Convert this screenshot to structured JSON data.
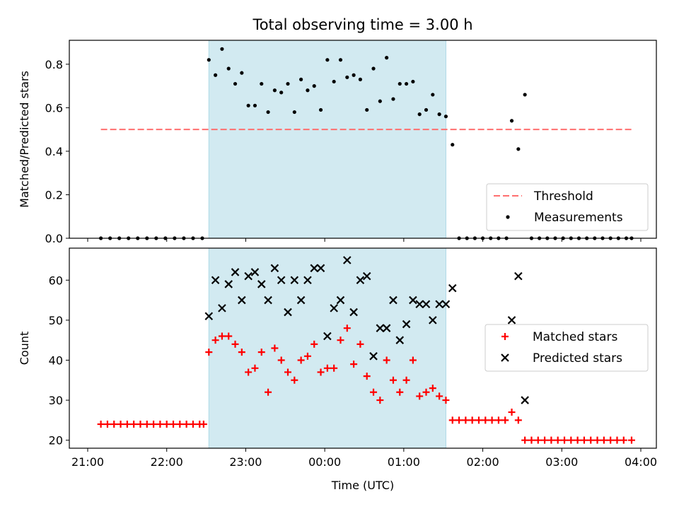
{
  "title": "Total observing time = 3.00 h",
  "colors": {
    "shade": "#add8e6",
    "threshold": "#ff6f6f",
    "measure": "#000000",
    "matched": "#ff0000",
    "predicted": "#000000"
  },
  "chart_data": [
    {
      "type": "scatter",
      "ylabel": "Matched/Predicted stars",
      "ylim": [
        0,
        0.91
      ],
      "yticks": [
        0.0,
        0.2,
        0.4,
        0.6,
        0.8
      ],
      "ytick_labels": [
        "0.0",
        "0.2",
        "0.4",
        "0.6",
        "0.8"
      ],
      "xlim": [
        "21:00",
        "04:00"
      ],
      "shaded_span": [
        "22:32",
        "01:32"
      ],
      "threshold": {
        "name": "Threshold",
        "value": 0.5,
        "x_range": [
          "21:10",
          "03:53"
        ]
      },
      "legend": {
        "position": "lower right",
        "entries": [
          "Threshold",
          "Measurements"
        ]
      },
      "series": [
        {
          "name": "Measurements",
          "marker": "dot",
          "points": [
            [
              "21:10",
              0
            ],
            [
              "21:17",
              0
            ],
            [
              "21:24",
              0
            ],
            [
              "21:31",
              0
            ],
            [
              "21:38",
              0
            ],
            [
              "21:45",
              0
            ],
            [
              "21:52",
              0
            ],
            [
              "21:59",
              0
            ],
            [
              "22:06",
              0
            ],
            [
              "22:13",
              0
            ],
            [
              "22:20",
              0
            ],
            [
              "22:27",
              0
            ],
            [
              "22:32",
              0.82
            ],
            [
              "22:37",
              0.75
            ],
            [
              "22:42",
              0.87
            ],
            [
              "22:47",
              0.78
            ],
            [
              "22:52",
              0.71
            ],
            [
              "22:57",
              0.76
            ],
            [
              "23:02",
              0.61
            ],
            [
              "23:07",
              0.61
            ],
            [
              "23:12",
              0.71
            ],
            [
              "23:17",
              0.58
            ],
            [
              "23:22",
              0.68
            ],
            [
              "23:27",
              0.67
            ],
            [
              "23:32",
              0.71
            ],
            [
              "23:37",
              0.58
            ],
            [
              "23:42",
              0.73
            ],
            [
              "23:47",
              0.68
            ],
            [
              "23:52",
              0.7
            ],
            [
              "23:57",
              0.59
            ],
            [
              "00:02",
              0.82
            ],
            [
              "00:07",
              0.72
            ],
            [
              "00:12",
              0.82
            ],
            [
              "00:17",
              0.74
            ],
            [
              "00:22",
              0.75
            ],
            [
              "00:27",
              0.73
            ],
            [
              "00:32",
              0.59
            ],
            [
              "00:37",
              0.78
            ],
            [
              "00:42",
              0.63
            ],
            [
              "00:47",
              0.83
            ],
            [
              "00:52",
              0.64
            ],
            [
              "00:57",
              0.71
            ],
            [
              "01:02",
              0.71
            ],
            [
              "01:07",
              0.72
            ],
            [
              "01:12",
              0.57
            ],
            [
              "01:17",
              0.59
            ],
            [
              "01:22",
              0.66
            ],
            [
              "01:27",
              0.57
            ],
            [
              "01:32",
              0.56
            ],
            [
              "01:37",
              0.43
            ],
            [
              "01:42",
              0
            ],
            [
              "01:48",
              0
            ],
            [
              "01:54",
              0
            ],
            [
              "02:00",
              0
            ],
            [
              "02:06",
              0
            ],
            [
              "02:12",
              0
            ],
            [
              "02:18",
              0
            ],
            [
              "02:22",
              0.54
            ],
            [
              "02:27",
              0.41
            ],
            [
              "02:32",
              0.66
            ],
            [
              "02:37",
              0
            ],
            [
              "02:43",
              0
            ],
            [
              "02:49",
              0
            ],
            [
              "02:55",
              0
            ],
            [
              "03:01",
              0
            ],
            [
              "03:07",
              0
            ],
            [
              "03:13",
              0
            ],
            [
              "03:19",
              0
            ],
            [
              "03:25",
              0
            ],
            [
              "03:31",
              0
            ],
            [
              "03:37",
              0
            ],
            [
              "03:43",
              0
            ],
            [
              "03:49",
              0
            ],
            [
              "03:53",
              0
            ]
          ]
        }
      ]
    },
    {
      "type": "scatter",
      "xlabel": "Time (UTC)",
      "ylabel": "Count",
      "ylim": [
        18,
        68
      ],
      "yticks": [
        20,
        30,
        40,
        50,
        60
      ],
      "ytick_labels": [
        "20",
        "30",
        "40",
        "50",
        "60"
      ],
      "xlim": [
        "21:00",
        "04:00"
      ],
      "xticks": [
        "21:00",
        "22:00",
        "23:00",
        "00:00",
        "01:00",
        "02:00",
        "03:00",
        "04:00"
      ],
      "shaded_span": [
        "22:32",
        "01:32"
      ],
      "legend": {
        "position": "center right",
        "entries": [
          "Matched stars",
          "Predicted stars"
        ]
      },
      "series": [
        {
          "name": "Matched stars",
          "marker": "plus",
          "points": [
            [
              "21:10",
              24
            ],
            [
              "21:15",
              24
            ],
            [
              "21:20",
              24
            ],
            [
              "21:25",
              24
            ],
            [
              "21:30",
              24
            ],
            [
              "21:35",
              24
            ],
            [
              "21:40",
              24
            ],
            [
              "21:45",
              24
            ],
            [
              "21:50",
              24
            ],
            [
              "21:55",
              24
            ],
            [
              "22:00",
              24
            ],
            [
              "22:05",
              24
            ],
            [
              "22:10",
              24
            ],
            [
              "22:15",
              24
            ],
            [
              "22:20",
              24
            ],
            [
              "22:25",
              24
            ],
            [
              "22:28",
              24
            ],
            [
              "22:32",
              42
            ],
            [
              "22:37",
              45
            ],
            [
              "22:42",
              46
            ],
            [
              "22:47",
              46
            ],
            [
              "22:52",
              44
            ],
            [
              "22:57",
              42
            ],
            [
              "23:02",
              37
            ],
            [
              "23:07",
              38
            ],
            [
              "23:12",
              42
            ],
            [
              "23:17",
              32
            ],
            [
              "23:22",
              43
            ],
            [
              "23:27",
              40
            ],
            [
              "23:32",
              37
            ],
            [
              "23:37",
              35
            ],
            [
              "23:42",
              40
            ],
            [
              "23:47",
              41
            ],
            [
              "23:52",
              44
            ],
            [
              "23:57",
              37
            ],
            [
              "00:02",
              38
            ],
            [
              "00:07",
              38
            ],
            [
              "00:12",
              45
            ],
            [
              "00:17",
              48
            ],
            [
              "00:22",
              39
            ],
            [
              "00:27",
              44
            ],
            [
              "00:32",
              36
            ],
            [
              "00:37",
              32
            ],
            [
              "00:42",
              30
            ],
            [
              "00:47",
              40
            ],
            [
              "00:52",
              35
            ],
            [
              "00:57",
              32
            ],
            [
              "01:02",
              35
            ],
            [
              "01:07",
              40
            ],
            [
              "01:12",
              31
            ],
            [
              "01:17",
              32
            ],
            [
              "01:22",
              33
            ],
            [
              "01:27",
              31
            ],
            [
              "01:32",
              30
            ],
            [
              "01:37",
              25
            ],
            [
              "01:42",
              25
            ],
            [
              "01:47",
              25
            ],
            [
              "01:52",
              25
            ],
            [
              "01:57",
              25
            ],
            [
              "02:02",
              25
            ],
            [
              "02:07",
              25
            ],
            [
              "02:12",
              25
            ],
            [
              "02:17",
              25
            ],
            [
              "02:22",
              27
            ],
            [
              "02:27",
              25
            ],
            [
              "02:32",
              20
            ],
            [
              "02:37",
              20
            ],
            [
              "02:42",
              20
            ],
            [
              "02:47",
              20
            ],
            [
              "02:52",
              20
            ],
            [
              "02:57",
              20
            ],
            [
              "03:02",
              20
            ],
            [
              "03:07",
              20
            ],
            [
              "03:12",
              20
            ],
            [
              "03:17",
              20
            ],
            [
              "03:22",
              20
            ],
            [
              "03:27",
              20
            ],
            [
              "03:32",
              20
            ],
            [
              "03:37",
              20
            ],
            [
              "03:42",
              20
            ],
            [
              "03:47",
              20
            ],
            [
              "03:53",
              20
            ]
          ]
        },
        {
          "name": "Predicted stars",
          "marker": "x",
          "points": [
            [
              "22:32",
              51
            ],
            [
              "22:37",
              60
            ],
            [
              "22:42",
              53
            ],
            [
              "22:47",
              59
            ],
            [
              "22:52",
              62
            ],
            [
              "22:57",
              55
            ],
            [
              "23:02",
              61
            ],
            [
              "23:07",
              62
            ],
            [
              "23:12",
              59
            ],
            [
              "23:17",
              55
            ],
            [
              "23:22",
              63
            ],
            [
              "23:27",
              60
            ],
            [
              "23:32",
              52
            ],
            [
              "23:37",
              60
            ],
            [
              "23:42",
              55
            ],
            [
              "23:47",
              60
            ],
            [
              "23:52",
              63
            ],
            [
              "23:57",
              63
            ],
            [
              "00:02",
              46
            ],
            [
              "00:07",
              53
            ],
            [
              "00:12",
              55
            ],
            [
              "00:17",
              65
            ],
            [
              "00:22",
              52
            ],
            [
              "00:27",
              60
            ],
            [
              "00:32",
              61
            ],
            [
              "00:37",
              41
            ],
            [
              "00:42",
              48
            ],
            [
              "00:47",
              48
            ],
            [
              "00:52",
              55
            ],
            [
              "00:57",
              45
            ],
            [
              "01:02",
              49
            ],
            [
              "01:07",
              55
            ],
            [
              "01:12",
              54
            ],
            [
              "01:17",
              54
            ],
            [
              "01:22",
              50
            ],
            [
              "01:27",
              54
            ],
            [
              "01:32",
              54
            ],
            [
              "01:37",
              58
            ],
            [
              "02:22",
              50
            ],
            [
              "02:27",
              61
            ],
            [
              "02:32",
              30
            ]
          ]
        }
      ]
    }
  ]
}
